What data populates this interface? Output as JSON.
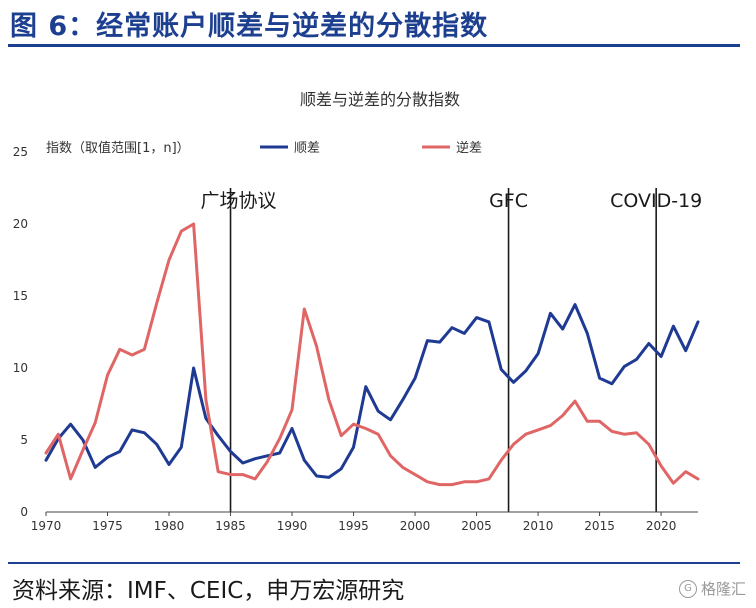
{
  "figure": {
    "title": "图 6：经常账户顺差与逆差的分散指数",
    "source": "资料来源：IMF、CEIC，申万宏源研究",
    "watermark": "格隆汇"
  },
  "colors": {
    "accent": "#1d3f8f",
    "surplus": "#1f3a93",
    "deficit": "#e06666",
    "event_line": "#1a1a1a"
  },
  "chart_data": {
    "type": "line",
    "title": "顺差与逆差的分散指数",
    "ylabel": "指数（取值范围[1，n]）",
    "xlabel": "",
    "xlim": [
      1970,
      2023
    ],
    "ylim": [
      0,
      25
    ],
    "xticks": [
      1970,
      1975,
      1980,
      1985,
      1990,
      1995,
      2000,
      2005,
      2010,
      2015,
      2020
    ],
    "yticks": [
      0,
      5,
      10,
      15,
      20,
      25
    ],
    "grid": false,
    "legend_position": "top",
    "x": [
      1970,
      1971,
      1972,
      1973,
      1974,
      1975,
      1976,
      1977,
      1978,
      1979,
      1980,
      1981,
      1982,
      1983,
      1984,
      1985,
      1986,
      1987,
      1988,
      1989,
      1990,
      1991,
      1992,
      1993,
      1994,
      1995,
      1996,
      1997,
      1998,
      1999,
      2000,
      2001,
      2002,
      2003,
      2004,
      2005,
      2006,
      2007,
      2008,
      2009,
      2010,
      2011,
      2012,
      2013,
      2014,
      2015,
      2016,
      2017,
      2018,
      2019,
      2020,
      2021,
      2022,
      2023
    ],
    "series": [
      {
        "name": "顺差",
        "color": "#1f3a93",
        "values": [
          3.6,
          5.1,
          6.1,
          5.0,
          3.1,
          3.8,
          4.2,
          5.7,
          5.5,
          4.7,
          3.3,
          4.5,
          10.0,
          6.5,
          5.3,
          4.2,
          3.4,
          3.7,
          3.9,
          4.1,
          5.8,
          3.6,
          2.5,
          2.4,
          3.0,
          4.5,
          8.7,
          7.0,
          6.4,
          7.8,
          9.3,
          11.9,
          11.8,
          12.8,
          12.4,
          13.5,
          13.2,
          9.9,
          9.0,
          9.8,
          11.0,
          13.8,
          12.7,
          14.4,
          12.4,
          9.3,
          8.9,
          10.1,
          10.6,
          11.7,
          10.8,
          12.9,
          11.2,
          13.2
        ]
      },
      {
        "name": "逆差",
        "color": "#e06666",
        "values": [
          4.1,
          5.4,
          2.3,
          4.3,
          6.2,
          9.5,
          11.3,
          10.9,
          11.3,
          14.5,
          17.5,
          19.5,
          20.0,
          7.8,
          2.8,
          2.6,
          2.6,
          2.3,
          3.5,
          5.1,
          7.1,
          14.1,
          11.5,
          7.8,
          5.3,
          6.1,
          5.8,
          5.4,
          3.9,
          3.1,
          2.6,
          2.1,
          1.9,
          1.9,
          2.1,
          2.1,
          2.3,
          3.6,
          4.7,
          5.4,
          5.7,
          6.0,
          6.7,
          7.7,
          6.3,
          6.3,
          5.6,
          5.4,
          5.5,
          4.7,
          3.2,
          2.0,
          2.8,
          2.3
        ]
      }
    ],
    "events": [
      {
        "label": "广场协议",
        "x": 1985.0
      },
      {
        "label": "GFC",
        "x": 2007.6
      },
      {
        "label": "COVID-19",
        "x": 2019.6
      }
    ]
  }
}
